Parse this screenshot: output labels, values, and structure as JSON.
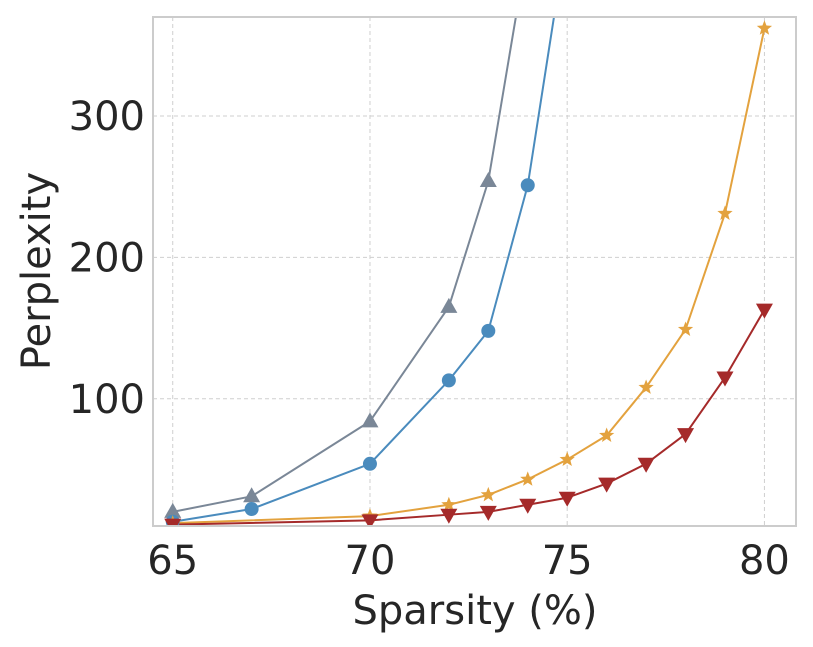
{
  "chart_data": {
    "type": "line",
    "title": "",
    "xlabel": "Sparsity (%)",
    "ylabel": "Perplexity",
    "xlim": [
      64.5,
      80.8
    ],
    "ylim": [
      10,
      370
    ],
    "xticks": [
      65,
      70,
      75,
      80
    ],
    "yticks": [
      100,
      200,
      300
    ],
    "grid": true,
    "legend": "none",
    "series": [
      {
        "color": "#7a8797",
        "marker": "triangle-up",
        "x": [
          65,
          67,
          70,
          72,
          73,
          74
        ],
        "y": [
          20,
          31,
          84,
          165,
          254,
          420
        ]
      },
      {
        "color": "#4a8bbd",
        "marker": "circle",
        "x": [
          65,
          67,
          70,
          72,
          73,
          74,
          75
        ],
        "y": [
          13,
          22,
          54,
          113,
          148,
          251,
          430
        ]
      },
      {
        "color": "#e3a23e",
        "marker": "star",
        "x": [
          65,
          70,
          72,
          73,
          74,
          75,
          76,
          77,
          78,
          79,
          80
        ],
        "y": [
          12,
          17,
          25,
          32,
          43,
          57,
          74,
          108,
          149,
          231,
          362
        ]
      },
      {
        "color": "#a52a2a",
        "marker": "triangle-down",
        "x": [
          65,
          70,
          72,
          73,
          74,
          75,
          76,
          77,
          78,
          79,
          80
        ],
        "y": [
          11,
          14,
          18,
          20,
          25,
          30,
          40,
          54,
          75,
          115,
          163
        ]
      }
    ]
  }
}
